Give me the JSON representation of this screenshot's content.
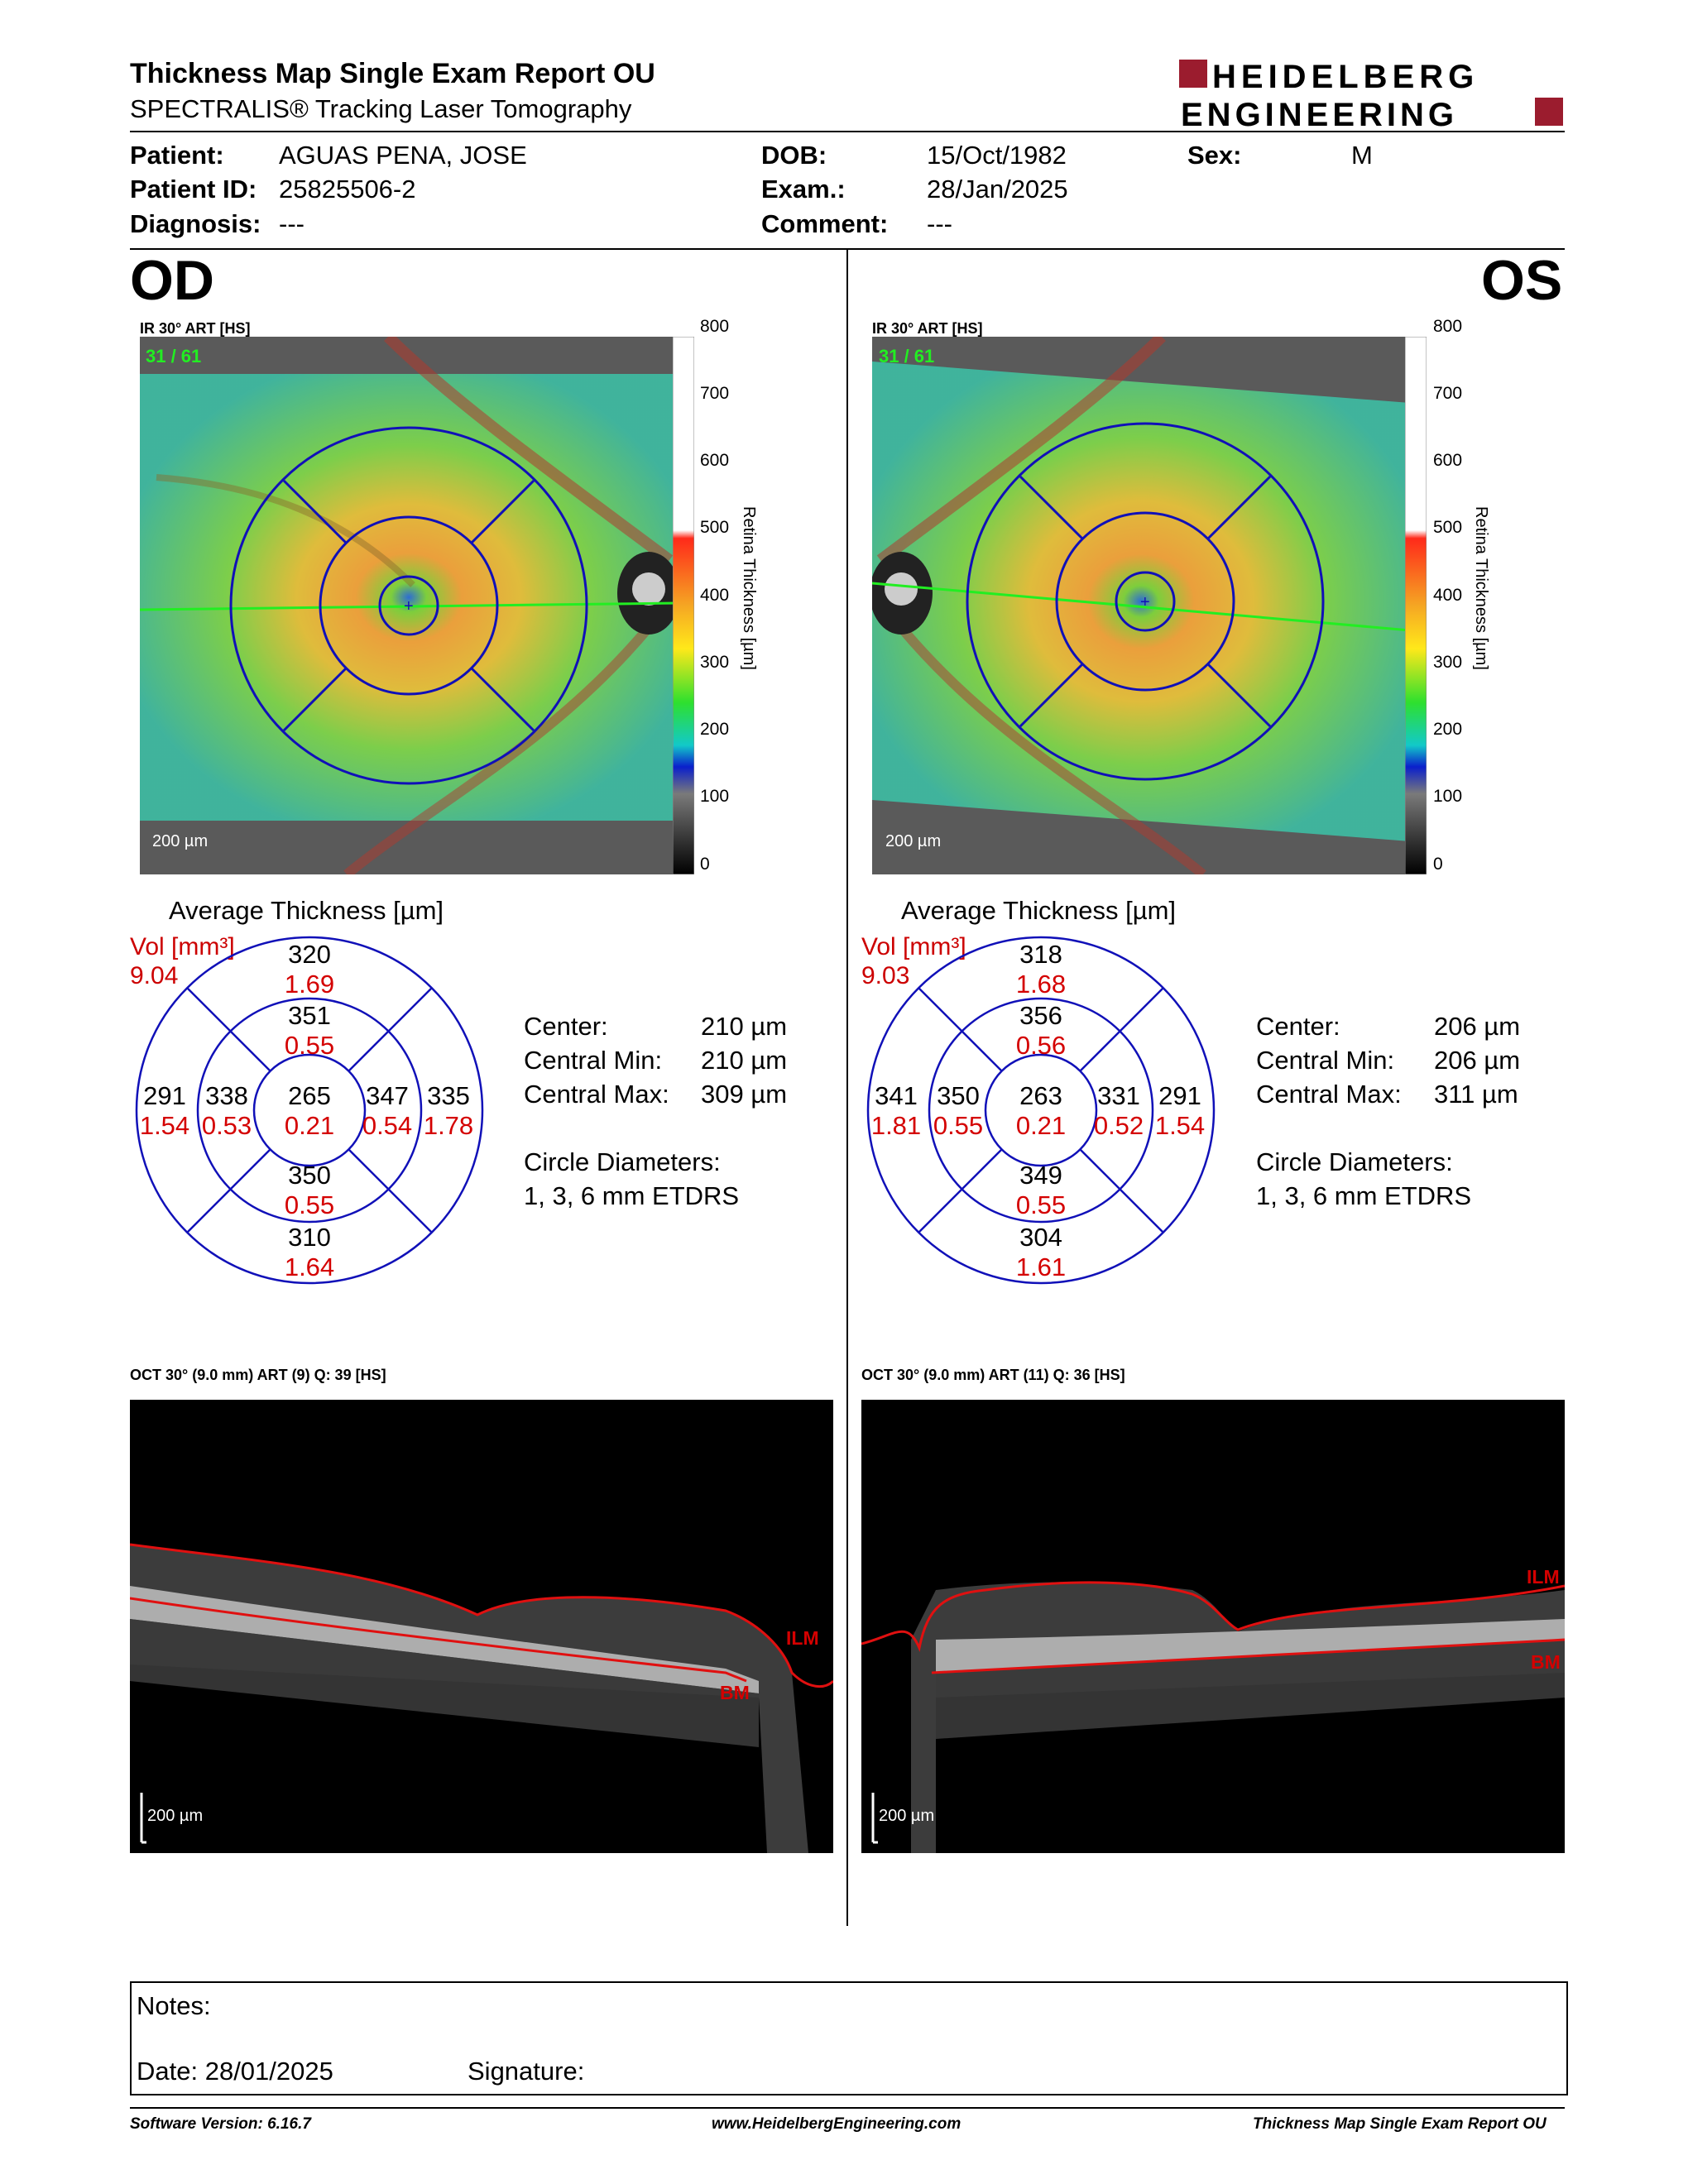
{
  "header": {
    "title": "Thickness Map Single Exam Report OU",
    "subtitle": "SPECTRALIS® Tracking Laser Tomography",
    "logo_line1": "HEIDELBERG",
    "logo_line2": "ENGINEERING",
    "logo_color": "#9b1c2e"
  },
  "patient": {
    "patient_label": "Patient:",
    "patient_value": "AGUAS PENA, JOSE",
    "id_label": "Patient ID:",
    "id_value": "25825506-2",
    "diagnosis_label": "Diagnosis:",
    "diagnosis_value": "---",
    "dob_label": "DOB:",
    "dob_value": "15/Oct/1982",
    "exam_label": "Exam.:",
    "exam_value": "28/Jan/2025",
    "comment_label": "Comment:",
    "comment_value": "---",
    "sex_label": "Sex:",
    "sex_value": "M"
  },
  "od": {
    "eye": "OD",
    "ir_label": "IR 30° ART [HS]",
    "scan_counter": "31 / 61",
    "scale_text": "200 µm",
    "avg_title": "Average Thickness [µm]",
    "vol_label": "Vol [mm³]",
    "vol_value": "9.04",
    "grid": {
      "outer_superior": {
        "t": "320",
        "v": "1.69"
      },
      "inner_superior": {
        "t": "351",
        "v": "0.55"
      },
      "center": {
        "t": "265",
        "v": "0.21"
      },
      "inner_inferior": {
        "t": "350",
        "v": "0.55"
      },
      "outer_inferior": {
        "t": "310",
        "v": "1.64"
      },
      "outer_left": {
        "t": "291",
        "v": "1.54"
      },
      "inner_left": {
        "t": "338",
        "v": "0.53"
      },
      "inner_right": {
        "t": "347",
        "v": "0.54"
      },
      "outer_right": {
        "t": "335",
        "v": "1.78"
      }
    },
    "center_label": "Center:",
    "center_value": "210 µm",
    "cmin_label": "Central Min:",
    "cmin_value": "210 µm",
    "cmax_label": "Central Max:",
    "cmax_value": "309 µm",
    "circle_label": "Circle Diameters:",
    "circle_value": "1, 3, 6 mm ETDRS",
    "oct_label": "OCT 30° (9.0 mm) ART (9) Q: 39 [HS]",
    "ilm": "ILM",
    "bm": "BM"
  },
  "os": {
    "eye": "OS",
    "ir_label": "IR 30° ART [HS]",
    "scan_counter": "31 / 61",
    "scale_text": "200 µm",
    "avg_title": "Average Thickness [µm]",
    "vol_label": "Vol [mm³]",
    "vol_value": "9.03",
    "grid": {
      "outer_superior": {
        "t": "318",
        "v": "1.68"
      },
      "inner_superior": {
        "t": "356",
        "v": "0.56"
      },
      "center": {
        "t": "263",
        "v": "0.21"
      },
      "inner_inferior": {
        "t": "349",
        "v": "0.55"
      },
      "outer_inferior": {
        "t": "304",
        "v": "1.61"
      },
      "outer_left": {
        "t": "341",
        "v": "1.81"
      },
      "inner_left": {
        "t": "350",
        "v": "0.55"
      },
      "inner_right": {
        "t": "331",
        "v": "0.52"
      },
      "outer_right": {
        "t": "291",
        "v": "1.54"
      }
    },
    "center_label": "Center:",
    "center_value": "206 µm",
    "cmin_label": "Central Min:",
    "cmin_value": "206 µm",
    "cmax_label": "Central Max:",
    "cmax_value": "311 µm",
    "circle_label": "Circle Diameters:",
    "circle_value": "1, 3, 6 mm ETDRS",
    "oct_label": "OCT 30° (9.0 mm) ART (11) Q: 36 [HS]",
    "ilm": "ILM",
    "bm": "BM"
  },
  "colorbar": {
    "ticks": [
      "800",
      "700",
      "600",
      "500",
      "400",
      "300",
      "200",
      "100",
      "0"
    ],
    "title": "Retina Thickness [µm]"
  },
  "notes": {
    "notes_label": "Notes:",
    "date_label": "Date: 28/01/2025",
    "signature_label": "Signature:"
  },
  "footer": {
    "software": "Software Version: 6.16.7",
    "url": "www.HeidelbergEngineering.com",
    "report": "Thickness Map Single Exam Report OU"
  }
}
